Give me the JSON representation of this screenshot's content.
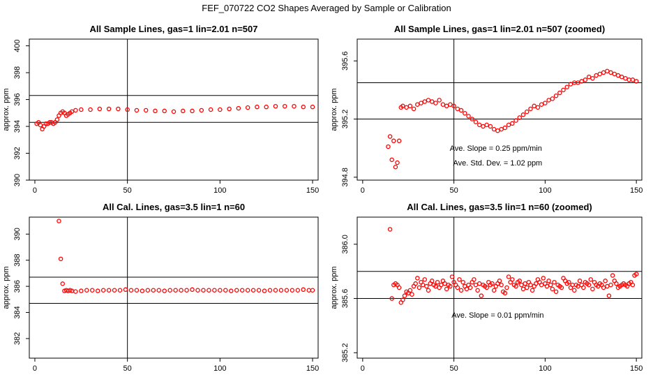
{
  "figure_title": "FEF_070722  CO2 Shapes Averaged by Sample or Calibration",
  "chart_data": [
    {
      "type": "scatter",
      "title": "All Sample Lines, gas=1 lin=2.01 n=507",
      "xlabel": "",
      "ylabel": "approx. ppm",
      "xlim": [
        -3,
        153
      ],
      "ylim": [
        390,
        400.5
      ],
      "xticks": [
        0,
        50,
        100,
        150
      ],
      "xtick_labels": [
        "0",
        "50",
        "100",
        "150"
      ],
      "yticks": [
        390,
        392,
        394,
        396,
        398,
        400
      ],
      "ytick_labels": [
        "390",
        "392",
        "394",
        "396",
        "398",
        "400"
      ],
      "hlines": [
        394.3,
        396.3
      ],
      "vlines": [
        50
      ],
      "annotations": [],
      "series": [
        {
          "color": "#ff0000",
          "x": [
            1,
            2,
            3,
            4,
            5,
            6,
            7,
            8,
            9,
            10,
            11,
            12,
            13,
            14,
            15,
            16,
            17,
            18,
            19,
            20,
            22,
            25,
            30,
            35,
            40,
            45,
            50,
            55,
            60,
            65,
            70,
            75,
            80,
            85,
            90,
            95,
            100,
            105,
            110,
            115,
            120,
            125,
            130,
            135,
            140,
            145,
            150
          ],
          "y": [
            394.2,
            394.3,
            394.1,
            393.8,
            394.0,
            394.2,
            394.2,
            394.3,
            394.3,
            394.2,
            394.3,
            394.5,
            394.8,
            395.0,
            395.1,
            395.0,
            394.8,
            394.9,
            395.0,
            395.1,
            395.2,
            395.25,
            395.25,
            395.3,
            395.3,
            395.3,
            395.25,
            395.2,
            395.2,
            395.15,
            395.15,
            395.1,
            395.15,
            395.15,
            395.2,
            395.25,
            395.25,
            395.3,
            395.35,
            395.4,
            395.45,
            395.45,
            395.5,
            395.5,
            395.5,
            395.45,
            395.45
          ]
        }
      ]
    },
    {
      "type": "scatter",
      "title": "All Sample Lines, gas=1 lin=2.01 n=507 (zoomed)",
      "xlabel": "",
      "ylabel": "approx. ppm",
      "xlim": [
        -3,
        153
      ],
      "ylim": [
        394.78,
        395.75
      ],
      "xticks": [
        0,
        50,
        100,
        150
      ],
      "xtick_labels": [
        "0",
        "50",
        "100",
        "150"
      ],
      "yticks": [
        394.8,
        395.2,
        395.6
      ],
      "ytick_labels": [
        "394.8",
        "395.2",
        "395.6"
      ],
      "hlines": [
        395.2,
        395.45
      ],
      "vlines": [
        50
      ],
      "annotations": [
        {
          "text": "Ave. Slope =  0.25  ppm/min",
          "x": 73,
          "y": 395.0
        },
        {
          "text": "Ave. Std. Dev. =  1.02  ppm",
          "x": 74,
          "y": 394.9
        }
      ],
      "series": [
        {
          "color": "#ff0000",
          "x": [
            14,
            15,
            16,
            17,
            18,
            19,
            20,
            21,
            22,
            24,
            26,
            28,
            30,
            32,
            34,
            36,
            38,
            40,
            42,
            44,
            46,
            48,
            50,
            52,
            54,
            56,
            58,
            60,
            62,
            64,
            66,
            68,
            70,
            72,
            74,
            76,
            78,
            80,
            82,
            84,
            86,
            88,
            90,
            92,
            94,
            96,
            98,
            100,
            102,
            104,
            106,
            108,
            110,
            112,
            114,
            116,
            118,
            120,
            122,
            124,
            126,
            128,
            130,
            132,
            134,
            136,
            138,
            140,
            142,
            144,
            146,
            148,
            150
          ],
          "y": [
            395.01,
            395.08,
            394.92,
            395.05,
            394.87,
            394.9,
            395.05,
            395.28,
            395.29,
            395.28,
            395.29,
            395.27,
            395.3,
            395.31,
            395.32,
            395.33,
            395.32,
            395.31,
            395.33,
            395.3,
            395.29,
            395.3,
            395.29,
            395.27,
            395.26,
            395.24,
            395.22,
            395.2,
            395.18,
            395.16,
            395.15,
            395.16,
            395.15,
            395.13,
            395.12,
            395.13,
            395.14,
            395.16,
            395.17,
            395.19,
            395.21,
            395.23,
            395.25,
            395.27,
            395.29,
            395.28,
            395.3,
            395.31,
            395.33,
            395.34,
            395.36,
            395.38,
            395.4,
            395.42,
            395.44,
            395.45,
            395.45,
            395.46,
            395.47,
            395.49,
            395.48,
            395.5,
            395.51,
            395.52,
            395.53,
            395.52,
            395.51,
            395.5,
            395.49,
            395.48,
            395.47,
            395.47,
            395.46
          ]
        }
      ]
    },
    {
      "type": "scatter",
      "title": "All Cal. Lines, gas=3.5 lin=1 n=60",
      "xlabel": "",
      "ylabel": "approx. ppm",
      "xlim": [
        -3,
        153
      ],
      "ylim": [
        380.5,
        391.3
      ],
      "xticks": [
        0,
        50,
        100,
        150
      ],
      "xtick_labels": [
        "0",
        "50",
        "100",
        "150"
      ],
      "yticks": [
        382,
        384,
        386,
        388,
        390
      ],
      "ytick_labels": [
        "382",
        "384",
        "386",
        "388",
        "390"
      ],
      "hlines": [
        384.7,
        386.7
      ],
      "vlines": [
        50
      ],
      "annotations": [],
      "series": [
        {
          "color": "#ff0000",
          "x": [
            13,
            14,
            15,
            16,
            17,
            18,
            19,
            20,
            22,
            25,
            28,
            31,
            34,
            37,
            40,
            43,
            46,
            49,
            52,
            55,
            58,
            61,
            64,
            67,
            70,
            73,
            76,
            79,
            82,
            85,
            88,
            91,
            94,
            97,
            100,
            103,
            106,
            109,
            112,
            115,
            118,
            121,
            124,
            127,
            130,
            133,
            136,
            139,
            142,
            145,
            148,
            150
          ],
          "y": [
            391.0,
            388.1,
            386.2,
            385.65,
            385.7,
            385.65,
            385.7,
            385.65,
            385.6,
            385.65,
            385.7,
            385.7,
            385.65,
            385.7,
            385.7,
            385.7,
            385.7,
            385.75,
            385.7,
            385.7,
            385.65,
            385.7,
            385.7,
            385.7,
            385.65,
            385.7,
            385.7,
            385.7,
            385.7,
            385.75,
            385.7,
            385.7,
            385.7,
            385.7,
            385.7,
            385.7,
            385.65,
            385.7,
            385.7,
            385.7,
            385.7,
            385.7,
            385.65,
            385.7,
            385.7,
            385.7,
            385.7,
            385.7,
            385.7,
            385.75,
            385.7,
            385.7
          ]
        }
      ]
    },
    {
      "type": "scatter",
      "title": "All Cal. Lines, gas=3.5 lin=1 n=60 (zoomed)",
      "xlabel": "",
      "ylabel": "approx. ppm",
      "xlim": [
        -3,
        153
      ],
      "ylim": [
        385.16,
        386.2
      ],
      "xticks": [
        0,
        50,
        100,
        150
      ],
      "xtick_labels": [
        "0",
        "50",
        "100",
        "150"
      ],
      "yticks": [
        385.2,
        385.6,
        386.0
      ],
      "ytick_labels": [
        "385.2",
        "385.6",
        "386.0"
      ],
      "hlines": [
        385.6,
        385.8
      ],
      "vlines": [
        50
      ],
      "annotations": [
        {
          "text": "Ave. Slope =  0.01  ppm/min",
          "x": 74,
          "y": 385.48
        }
      ],
      "series": [
        {
          "color": "#ff0000",
          "x": [
            15,
            16,
            17,
            18,
            19,
            20,
            21,
            22,
            23,
            24,
            25,
            26,
            27,
            28,
            29,
            30,
            31,
            32,
            33,
            34,
            35,
            36,
            37,
            38,
            39,
            40,
            41,
            42,
            43,
            44,
            45,
            46,
            47,
            48,
            49,
            50,
            51,
            52,
            53,
            54,
            55,
            56,
            57,
            58,
            59,
            60,
            61,
            62,
            63,
            64,
            65,
            66,
            67,
            68,
            69,
            70,
            71,
            72,
            73,
            74,
            75,
            76,
            77,
            78,
            79,
            80,
            81,
            82,
            83,
            84,
            85,
            86,
            87,
            88,
            89,
            90,
            91,
            92,
            93,
            94,
            95,
            96,
            97,
            98,
            99,
            100,
            101,
            102,
            103,
            104,
            105,
            106,
            107,
            108,
            109,
            110,
            111,
            112,
            113,
            114,
            115,
            116,
            117,
            118,
            119,
            120,
            121,
            122,
            123,
            124,
            125,
            126,
            127,
            128,
            129,
            130,
            131,
            132,
            133,
            134,
            135,
            136,
            137,
            138,
            139,
            140,
            141,
            142,
            143,
            144,
            145,
            146,
            147,
            148,
            149,
            150
          ],
          "y": [
            386.11,
            385.6,
            385.7,
            385.71,
            385.7,
            385.68,
            385.57,
            385.59,
            385.62,
            385.65,
            385.64,
            385.66,
            385.63,
            385.69,
            385.71,
            385.75,
            385.68,
            385.72,
            385.7,
            385.74,
            385.69,
            385.66,
            385.71,
            385.73,
            385.7,
            385.69,
            385.72,
            385.68,
            385.7,
            385.73,
            385.71,
            385.67,
            385.7,
            385.69,
            385.76,
            385.72,
            385.7,
            385.68,
            385.74,
            385.66,
            385.72,
            385.69,
            385.67,
            385.7,
            385.68,
            385.72,
            385.74,
            385.7,
            385.66,
            385.71,
            385.62,
            385.7,
            385.69,
            385.68,
            385.72,
            385.7,
            385.71,
            385.66,
            385.69,
            385.71,
            385.73,
            385.7,
            385.65,
            385.64,
            385.68,
            385.76,
            385.72,
            385.74,
            385.7,
            385.69,
            385.72,
            385.73,
            385.7,
            385.67,
            385.71,
            385.68,
            385.72,
            385.7,
            385.66,
            385.69,
            385.71,
            385.74,
            385.72,
            385.7,
            385.75,
            385.71,
            385.69,
            385.73,
            385.7,
            385.67,
            385.72,
            385.65,
            385.7,
            385.69,
            385.68,
            385.75,
            385.73,
            385.71,
            385.72,
            385.68,
            385.7,
            385.66,
            385.7,
            385.69,
            385.73,
            385.7,
            385.68,
            385.72,
            385.71,
            385.7,
            385.74,
            385.67,
            385.72,
            385.7,
            385.69,
            385.71,
            385.7,
            385.68,
            385.73,
            385.69,
            385.62,
            385.7,
            385.77,
            385.73,
            385.71,
            385.68,
            385.69,
            385.7,
            385.71,
            385.7,
            385.69,
            385.71,
            385.72,
            385.7,
            385.77,
            385.78
          ]
        }
      ]
    }
  ]
}
